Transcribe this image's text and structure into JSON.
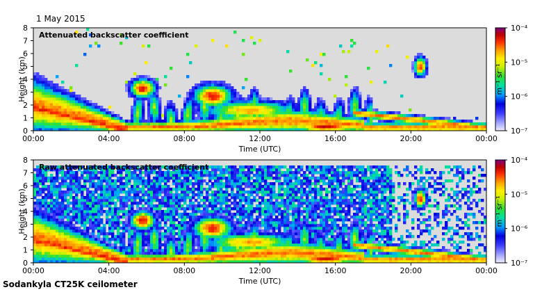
{
  "date": "1 May 2015",
  "footer": "Sodankyla CT25K ceilometer",
  "colors": {
    "background": "#ffffff",
    "no_data": "#dcdcdc",
    "colormap": [
      "#f0f0ff",
      "#a0a0ff",
      "#3c3cff",
      "#0000dc",
      "#00a0ff",
      "#00e0a0",
      "#30e030",
      "#c8f000",
      "#fff000",
      "#ffa000",
      "#ff3000",
      "#c00000",
      "#7a0080"
    ]
  },
  "chart_data": [
    {
      "type": "heatmap",
      "title": "Attenuated backscatter coefficient",
      "xlabel": "Time (UTC)",
      "ylabel": "Height (km)",
      "xticks": [
        "00:00",
        "04:00",
        "08:00",
        "12:00",
        "16:00",
        "20:00",
        "00:00"
      ],
      "yticks": [
        "0",
        "1",
        "2",
        "3",
        "4",
        "5",
        "6",
        "7",
        "8"
      ],
      "xlim_hours": [
        0,
        24
      ],
      "ylim_km": [
        0,
        8
      ],
      "colorbar": {
        "label": "m⁻¹ sr⁻¹",
        "scale": "log",
        "range": [
          1e-07,
          0.0001
        ],
        "ticks": [
          "10⁻⁷",
          "10⁻⁶",
          "10⁻⁵",
          "10⁻⁴"
        ]
      },
      "noise_level": 0.08
    },
    {
      "type": "heatmap",
      "title": "Raw attenuated backscatter coefficient",
      "xlabel": "Time (UTC)",
      "ylabel": "Height (km)",
      "xticks": [
        "00:00",
        "04:00",
        "08:00",
        "12:00",
        "16:00",
        "20:00",
        "00:00"
      ],
      "yticks": [
        "0",
        "1",
        "2",
        "3",
        "4",
        "5",
        "6",
        "7",
        "8"
      ],
      "xlim_hours": [
        0,
        24
      ],
      "ylim_km": [
        0,
        8
      ],
      "colorbar": {
        "label": "m⁻¹ sr⁻¹",
        "scale": "log",
        "range": [
          1e-07,
          0.0001
        ],
        "ticks": [
          "10⁻⁷",
          "10⁻⁶",
          "10⁻⁵",
          "10⁻⁴"
        ]
      },
      "noise_level": 0.85
    }
  ]
}
